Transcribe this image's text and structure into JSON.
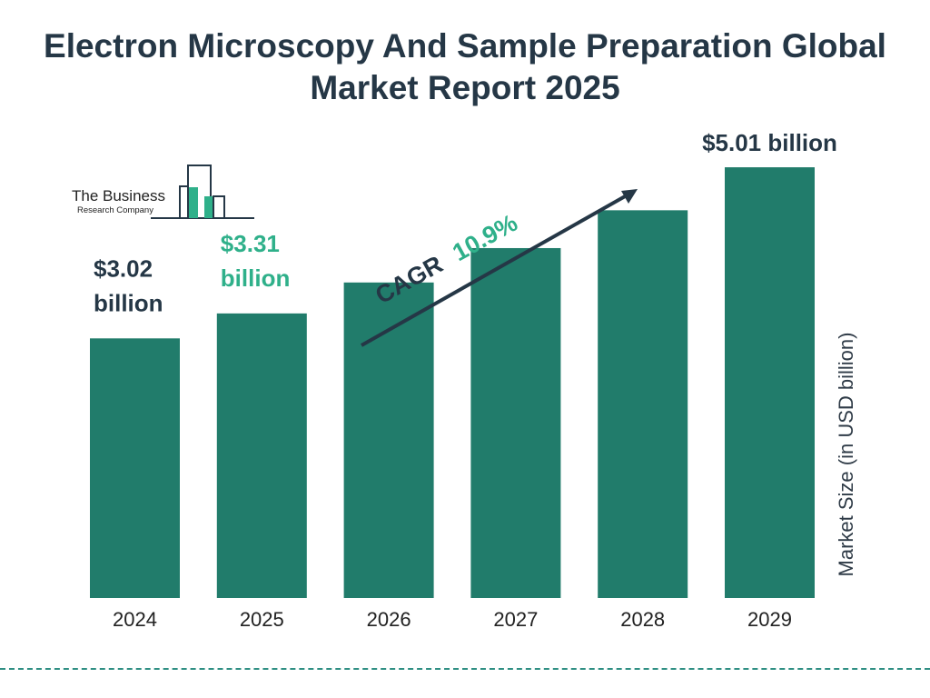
{
  "title": "Electron Microscopy And Sample Preparation Global Market Report 2025",
  "logo": {
    "line1": "The Business",
    "line2": "Research Company"
  },
  "cagr": {
    "label": "CAGR",
    "value": "10.9%"
  },
  "colors": {
    "bar": "#217c6b",
    "accent": "#2fb08a",
    "text": "#253746"
  },
  "chart_data": {
    "type": "bar",
    "categories": [
      "2024",
      "2025",
      "2026",
      "2027",
      "2028",
      "2029"
    ],
    "values": [
      3.02,
      3.31,
      3.67,
      4.07,
      4.51,
      5.01
    ],
    "ylabel": "Market Size (in USD billion)",
    "data_labels": [
      {
        "index": 0,
        "line1": "$3.02",
        "line2": "billion",
        "color": "#253746"
      },
      {
        "index": 1,
        "line1": "$3.31",
        "line2": "billion",
        "color": "#2fb08a"
      },
      {
        "index": 5,
        "line1": "$5.01 billion",
        "line2": "",
        "color": "#253746"
      }
    ],
    "grid": false
  }
}
